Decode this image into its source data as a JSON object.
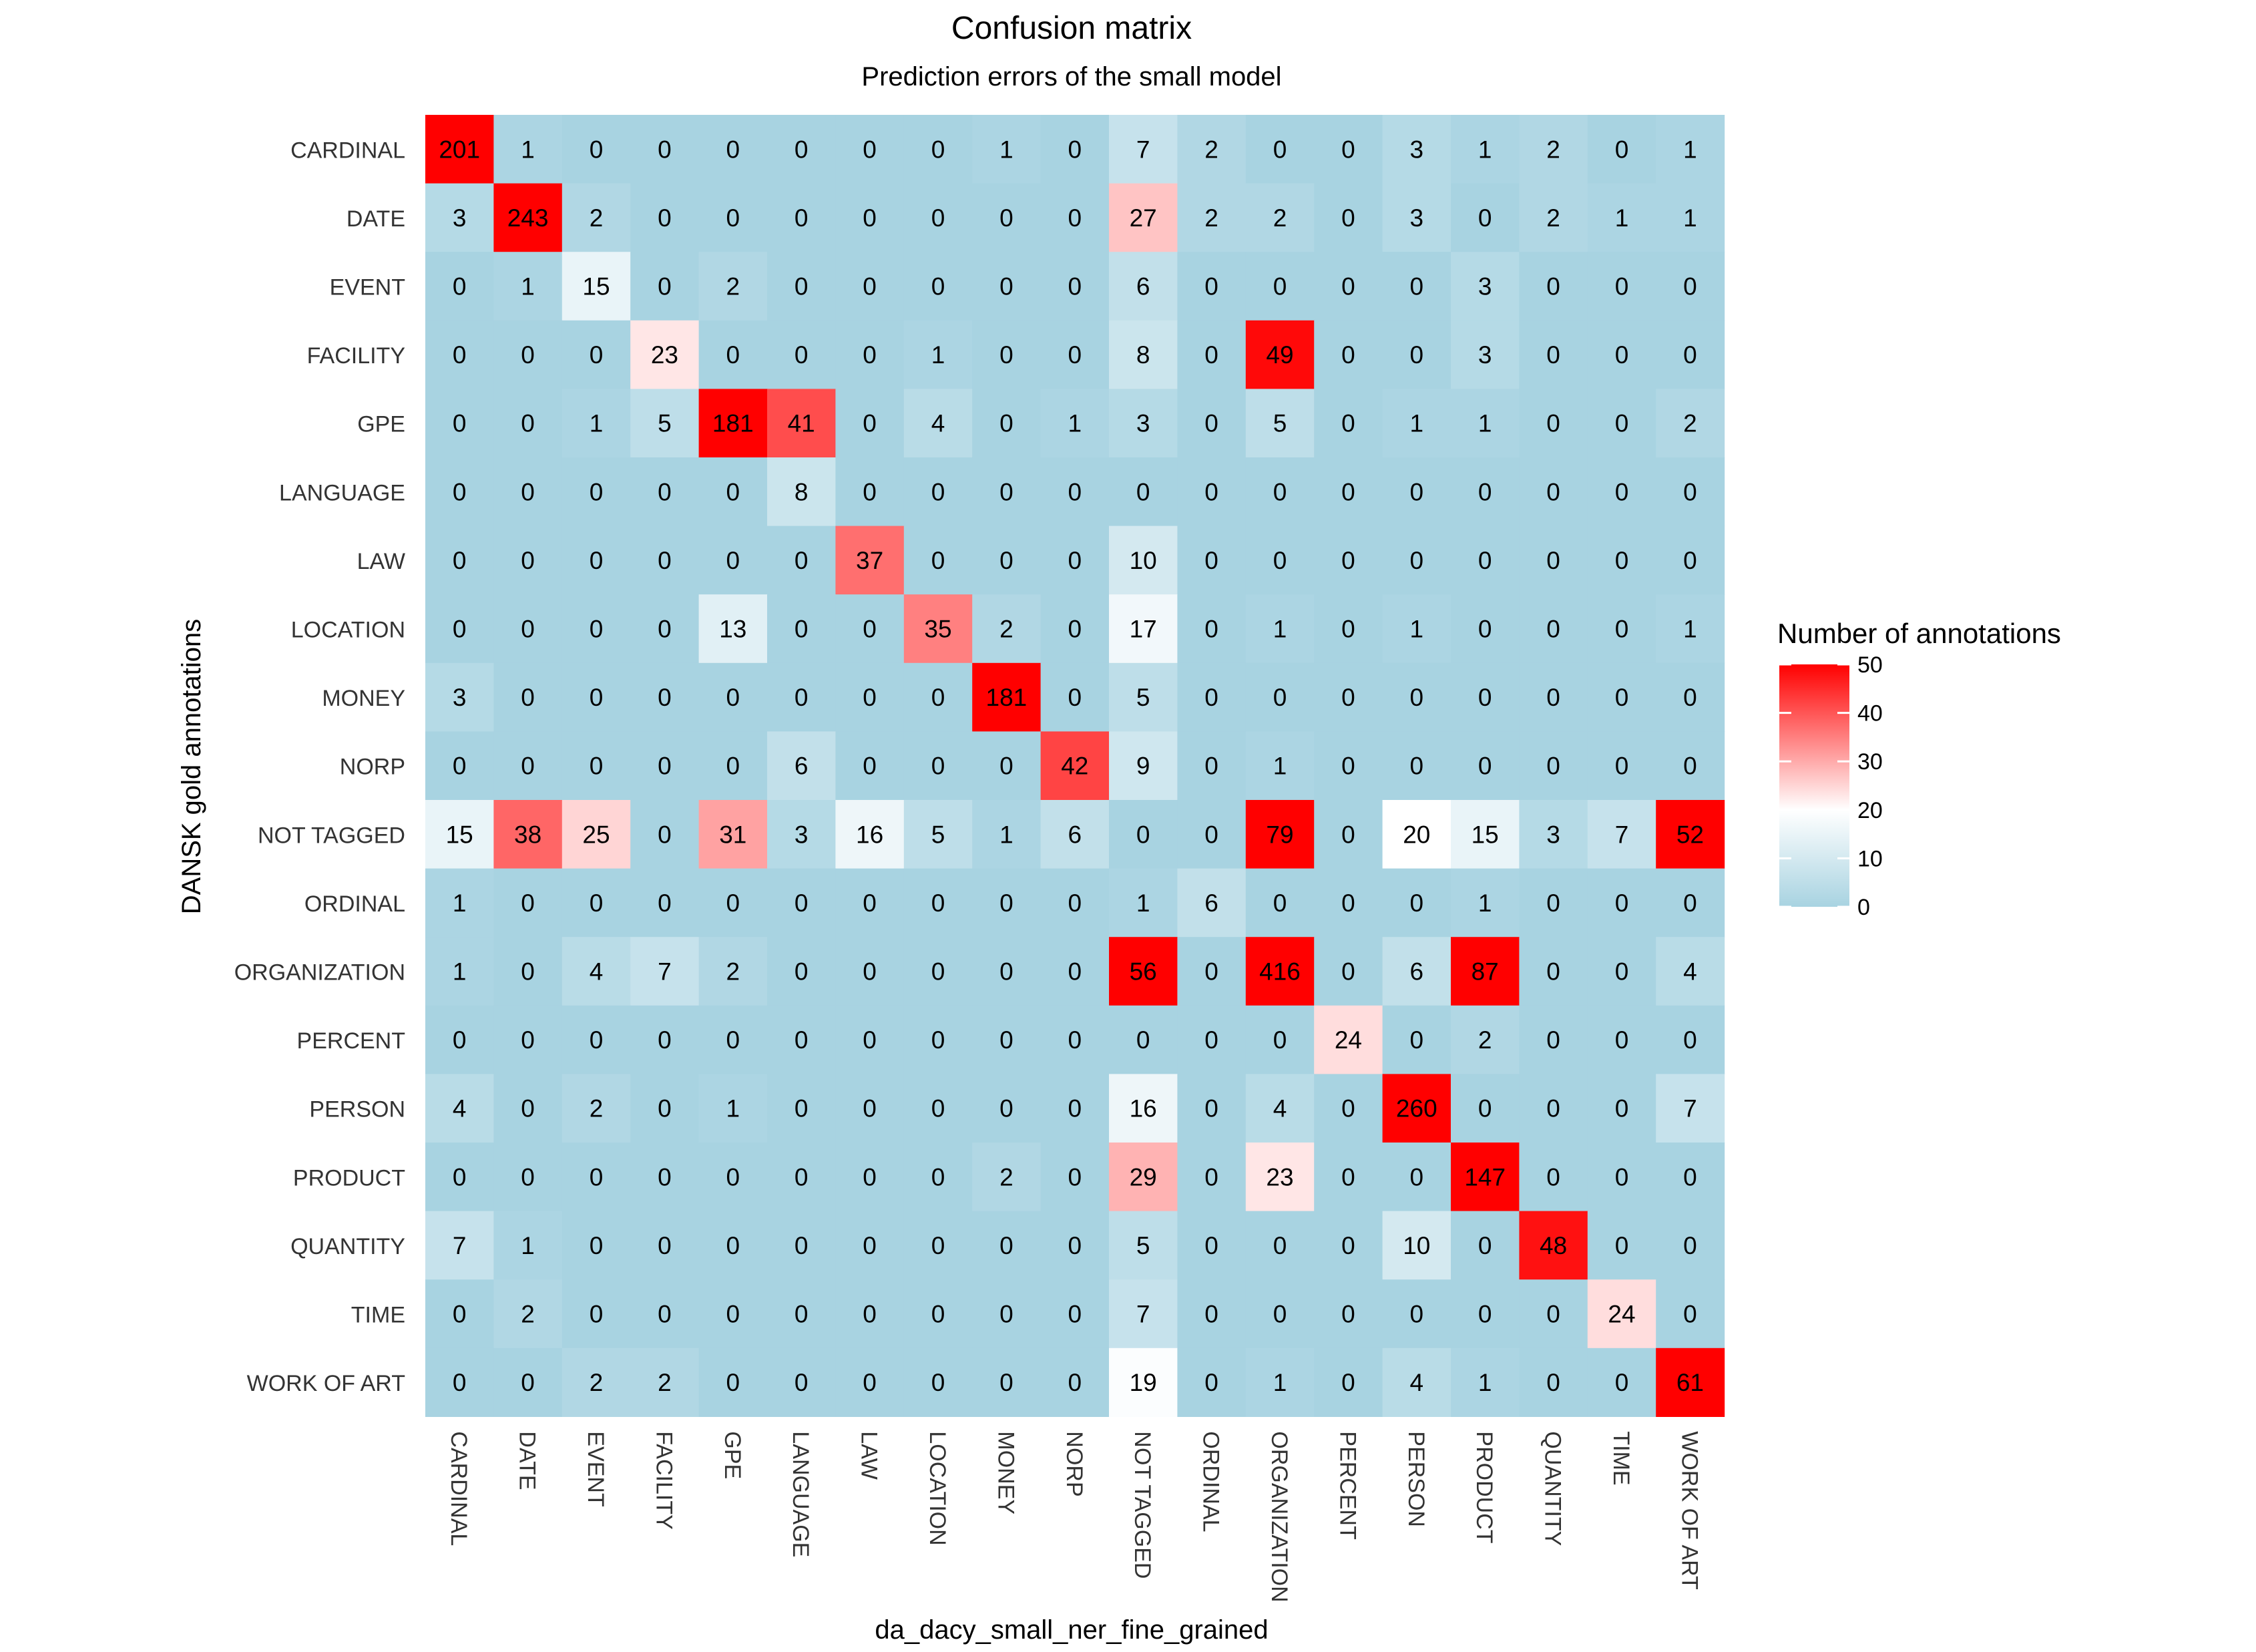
{
  "chart_data": {
    "type": "heatmap",
    "title": "Confusion matrix",
    "subtitle": "Prediction errors of the small model",
    "xlabel": "da_dacy_small_ner_fine_grained",
    "ylabel": "DANSK gold annotations",
    "x_categories": [
      "CARDINAL",
      "DATE",
      "EVENT",
      "FACILITY",
      "GPE",
      "LANGUAGE",
      "LAW",
      "LOCATION",
      "MONEY",
      "NORP",
      "NOT TAGGED",
      "ORDINAL",
      "ORGANIZATION",
      "PERCENT",
      "PERSON",
      "PRODUCT",
      "QUANTITY",
      "TIME",
      "WORK OF ART"
    ],
    "y_categories": [
      "CARDINAL",
      "DATE",
      "EVENT",
      "FACILITY",
      "GPE",
      "LANGUAGE",
      "LAW",
      "LOCATION",
      "MONEY",
      "NORP",
      "NOT TAGGED",
      "ORDINAL",
      "ORGANIZATION",
      "PERCENT",
      "PERSON",
      "PRODUCT",
      "QUANTITY",
      "TIME",
      "WORK OF ART"
    ],
    "values": [
      [
        201,
        1,
        0,
        0,
        0,
        0,
        0,
        0,
        1,
        0,
        7,
        2,
        0,
        0,
        3,
        1,
        2,
        0,
        1
      ],
      [
        3,
        243,
        2,
        0,
        0,
        0,
        0,
        0,
        0,
        0,
        27,
        2,
        2,
        0,
        3,
        0,
        2,
        1,
        1
      ],
      [
        0,
        1,
        15,
        0,
        2,
        0,
        0,
        0,
        0,
        0,
        6,
        0,
        0,
        0,
        0,
        3,
        0,
        0,
        0
      ],
      [
        0,
        0,
        0,
        23,
        0,
        0,
        0,
        1,
        0,
        0,
        8,
        0,
        49,
        0,
        0,
        3,
        0,
        0,
        0
      ],
      [
        0,
        0,
        1,
        5,
        181,
        41,
        0,
        4,
        0,
        1,
        3,
        0,
        5,
        0,
        1,
        1,
        0,
        0,
        2
      ],
      [
        0,
        0,
        0,
        0,
        0,
        8,
        0,
        0,
        0,
        0,
        0,
        0,
        0,
        0,
        0,
        0,
        0,
        0,
        0
      ],
      [
        0,
        0,
        0,
        0,
        0,
        0,
        37,
        0,
        0,
        0,
        10,
        0,
        0,
        0,
        0,
        0,
        0,
        0,
        0
      ],
      [
        0,
        0,
        0,
        0,
        13,
        0,
        0,
        35,
        2,
        0,
        17,
        0,
        1,
        0,
        1,
        0,
        0,
        0,
        1
      ],
      [
        3,
        0,
        0,
        0,
        0,
        0,
        0,
        0,
        181,
        0,
        5,
        0,
        0,
        0,
        0,
        0,
        0,
        0,
        0
      ],
      [
        0,
        0,
        0,
        0,
        0,
        6,
        0,
        0,
        0,
        42,
        9,
        0,
        1,
        0,
        0,
        0,
        0,
        0,
        0
      ],
      [
        15,
        38,
        25,
        0,
        31,
        3,
        16,
        5,
        1,
        6,
        0,
        0,
        79,
        0,
        20,
        15,
        3,
        7,
        52
      ],
      [
        1,
        0,
        0,
        0,
        0,
        0,
        0,
        0,
        0,
        0,
        1,
        6,
        0,
        0,
        0,
        1,
        0,
        0,
        0
      ],
      [
        1,
        0,
        4,
        7,
        2,
        0,
        0,
        0,
        0,
        0,
        56,
        0,
        416,
        0,
        6,
        87,
        0,
        0,
        4
      ],
      [
        0,
        0,
        0,
        0,
        0,
        0,
        0,
        0,
        0,
        0,
        0,
        0,
        0,
        24,
        0,
        2,
        0,
        0,
        0
      ],
      [
        4,
        0,
        2,
        0,
        1,
        0,
        0,
        0,
        0,
        0,
        16,
        0,
        4,
        0,
        260,
        0,
        0,
        0,
        7
      ],
      [
        0,
        0,
        0,
        0,
        0,
        0,
        0,
        0,
        2,
        0,
        29,
        0,
        23,
        0,
        0,
        147,
        0,
        0,
        0
      ],
      [
        7,
        1,
        0,
        0,
        0,
        0,
        0,
        0,
        0,
        0,
        5,
        0,
        0,
        0,
        10,
        0,
        48,
        0,
        0
      ],
      [
        0,
        2,
        0,
        0,
        0,
        0,
        0,
        0,
        0,
        0,
        7,
        0,
        0,
        0,
        0,
        0,
        0,
        24,
        0
      ],
      [
        0,
        0,
        2,
        2,
        0,
        0,
        0,
        0,
        0,
        0,
        19,
        0,
        1,
        0,
        4,
        1,
        0,
        0,
        61
      ]
    ],
    "color_scale": {
      "low": "#a8d3e1",
      "mid": "#ffffff",
      "high": "#ff0000",
      "min": 0,
      "midpoint": 20,
      "max": 50,
      "clip_above_max": true
    },
    "legend": {
      "title": "Number of annotations",
      "ticks": [
        0,
        10,
        20,
        30,
        40,
        50
      ],
      "position": "right"
    },
    "grid": true
  }
}
